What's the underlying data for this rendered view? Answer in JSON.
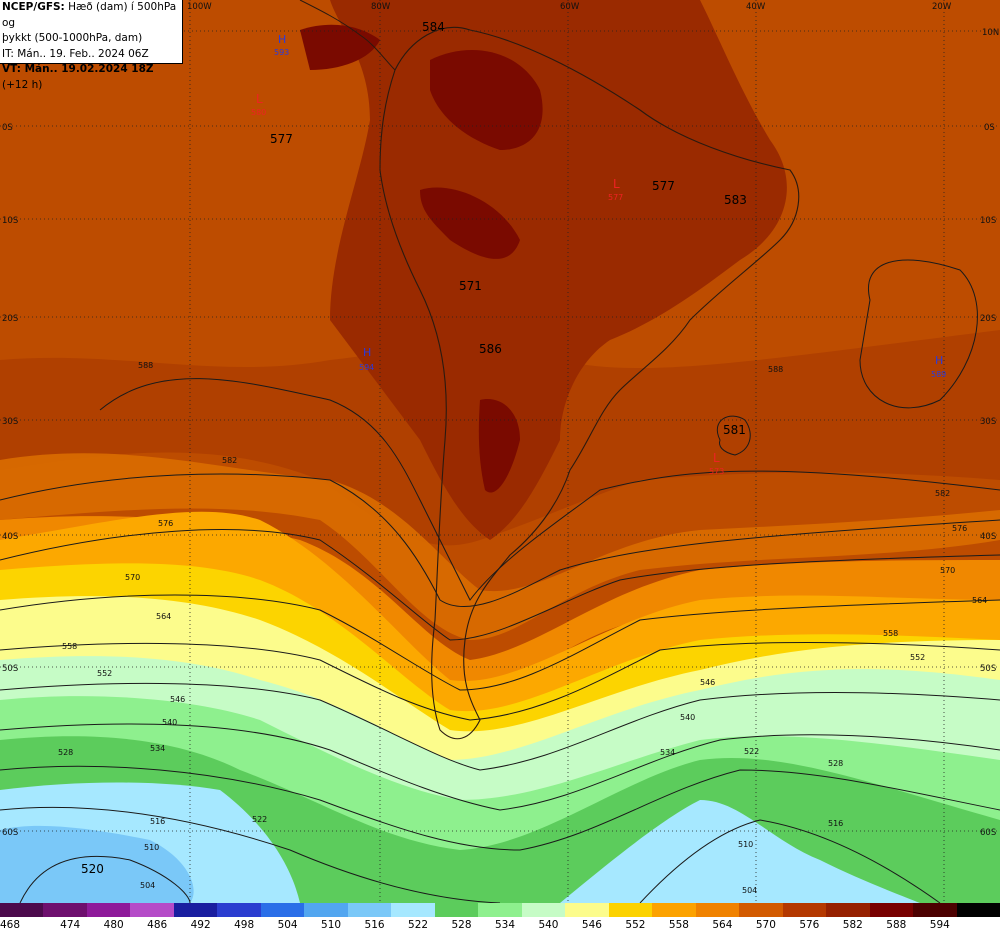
{
  "header": {
    "line1_bold": "NCEP/GFS:",
    "line1_rest": " Hæð (dam) í 500hPa og",
    "line2": "þykkt (500-1000hPa, dam)",
    "line3": "IT: Mán.. 19. Feb.. 2024 06Z",
    "line4_bold": "VT: Mán.. 19.02.2024 18Z",
    "line4_rest": " (+12 h)"
  },
  "lon_labels": [
    "100W",
    "80W",
    "60W",
    "40W",
    "20W"
  ],
  "lat_labels": [
    "10N",
    "0S",
    "10S",
    "20S",
    "30S",
    "40S",
    "50S",
    "60S"
  ],
  "height_labels": [
    "584",
    "577",
    "577",
    "583",
    "571",
    "586",
    "581",
    "520"
  ],
  "contour_labels": [
    "588",
    "582",
    "576",
    "570",
    "564",
    "558",
    "552",
    "546",
    "540",
    "534",
    "528",
    "522",
    "516",
    "510",
    "504"
  ],
  "pressure_centers": [
    {
      "type": "H",
      "value": "593"
    },
    {
      "type": "L",
      "value": "580"
    },
    {
      "type": "H",
      "value": "594"
    },
    {
      "type": "L",
      "value": "577"
    },
    {
      "type": "H",
      "value": "589"
    },
    {
      "type": "L",
      "value": "573"
    }
  ],
  "colorbar": {
    "ticks": [
      "468",
      "474",
      "480",
      "486",
      "492",
      "498",
      "504",
      "510",
      "516",
      "522",
      "528",
      "534",
      "540",
      "546",
      "552",
      "558",
      "564",
      "570",
      "576",
      "582",
      "588",
      "594"
    ],
    "colors": [
      "#4c0a4c",
      "#6e0f6e",
      "#8e1a9a",
      "#b54bc8",
      "#1a1ea0",
      "#2b3dd0",
      "#2a6ee8",
      "#52a6f0",
      "#7ac8f8",
      "#a6e8ff",
      "#5ccc5c",
      "#8ef08e",
      "#c6fcc6",
      "#fcfc8c",
      "#fcd200",
      "#fca200",
      "#f08200",
      "#d25a00",
      "#b43800",
      "#962000",
      "#780000",
      "#4c0000",
      "#000000"
    ]
  },
  "colors": {
    "warm_ocean": "#b84700",
    "hot_interior": "#9a2a00",
    "extreme": "#7a0a00",
    "contour": "#1a1a1a"
  }
}
